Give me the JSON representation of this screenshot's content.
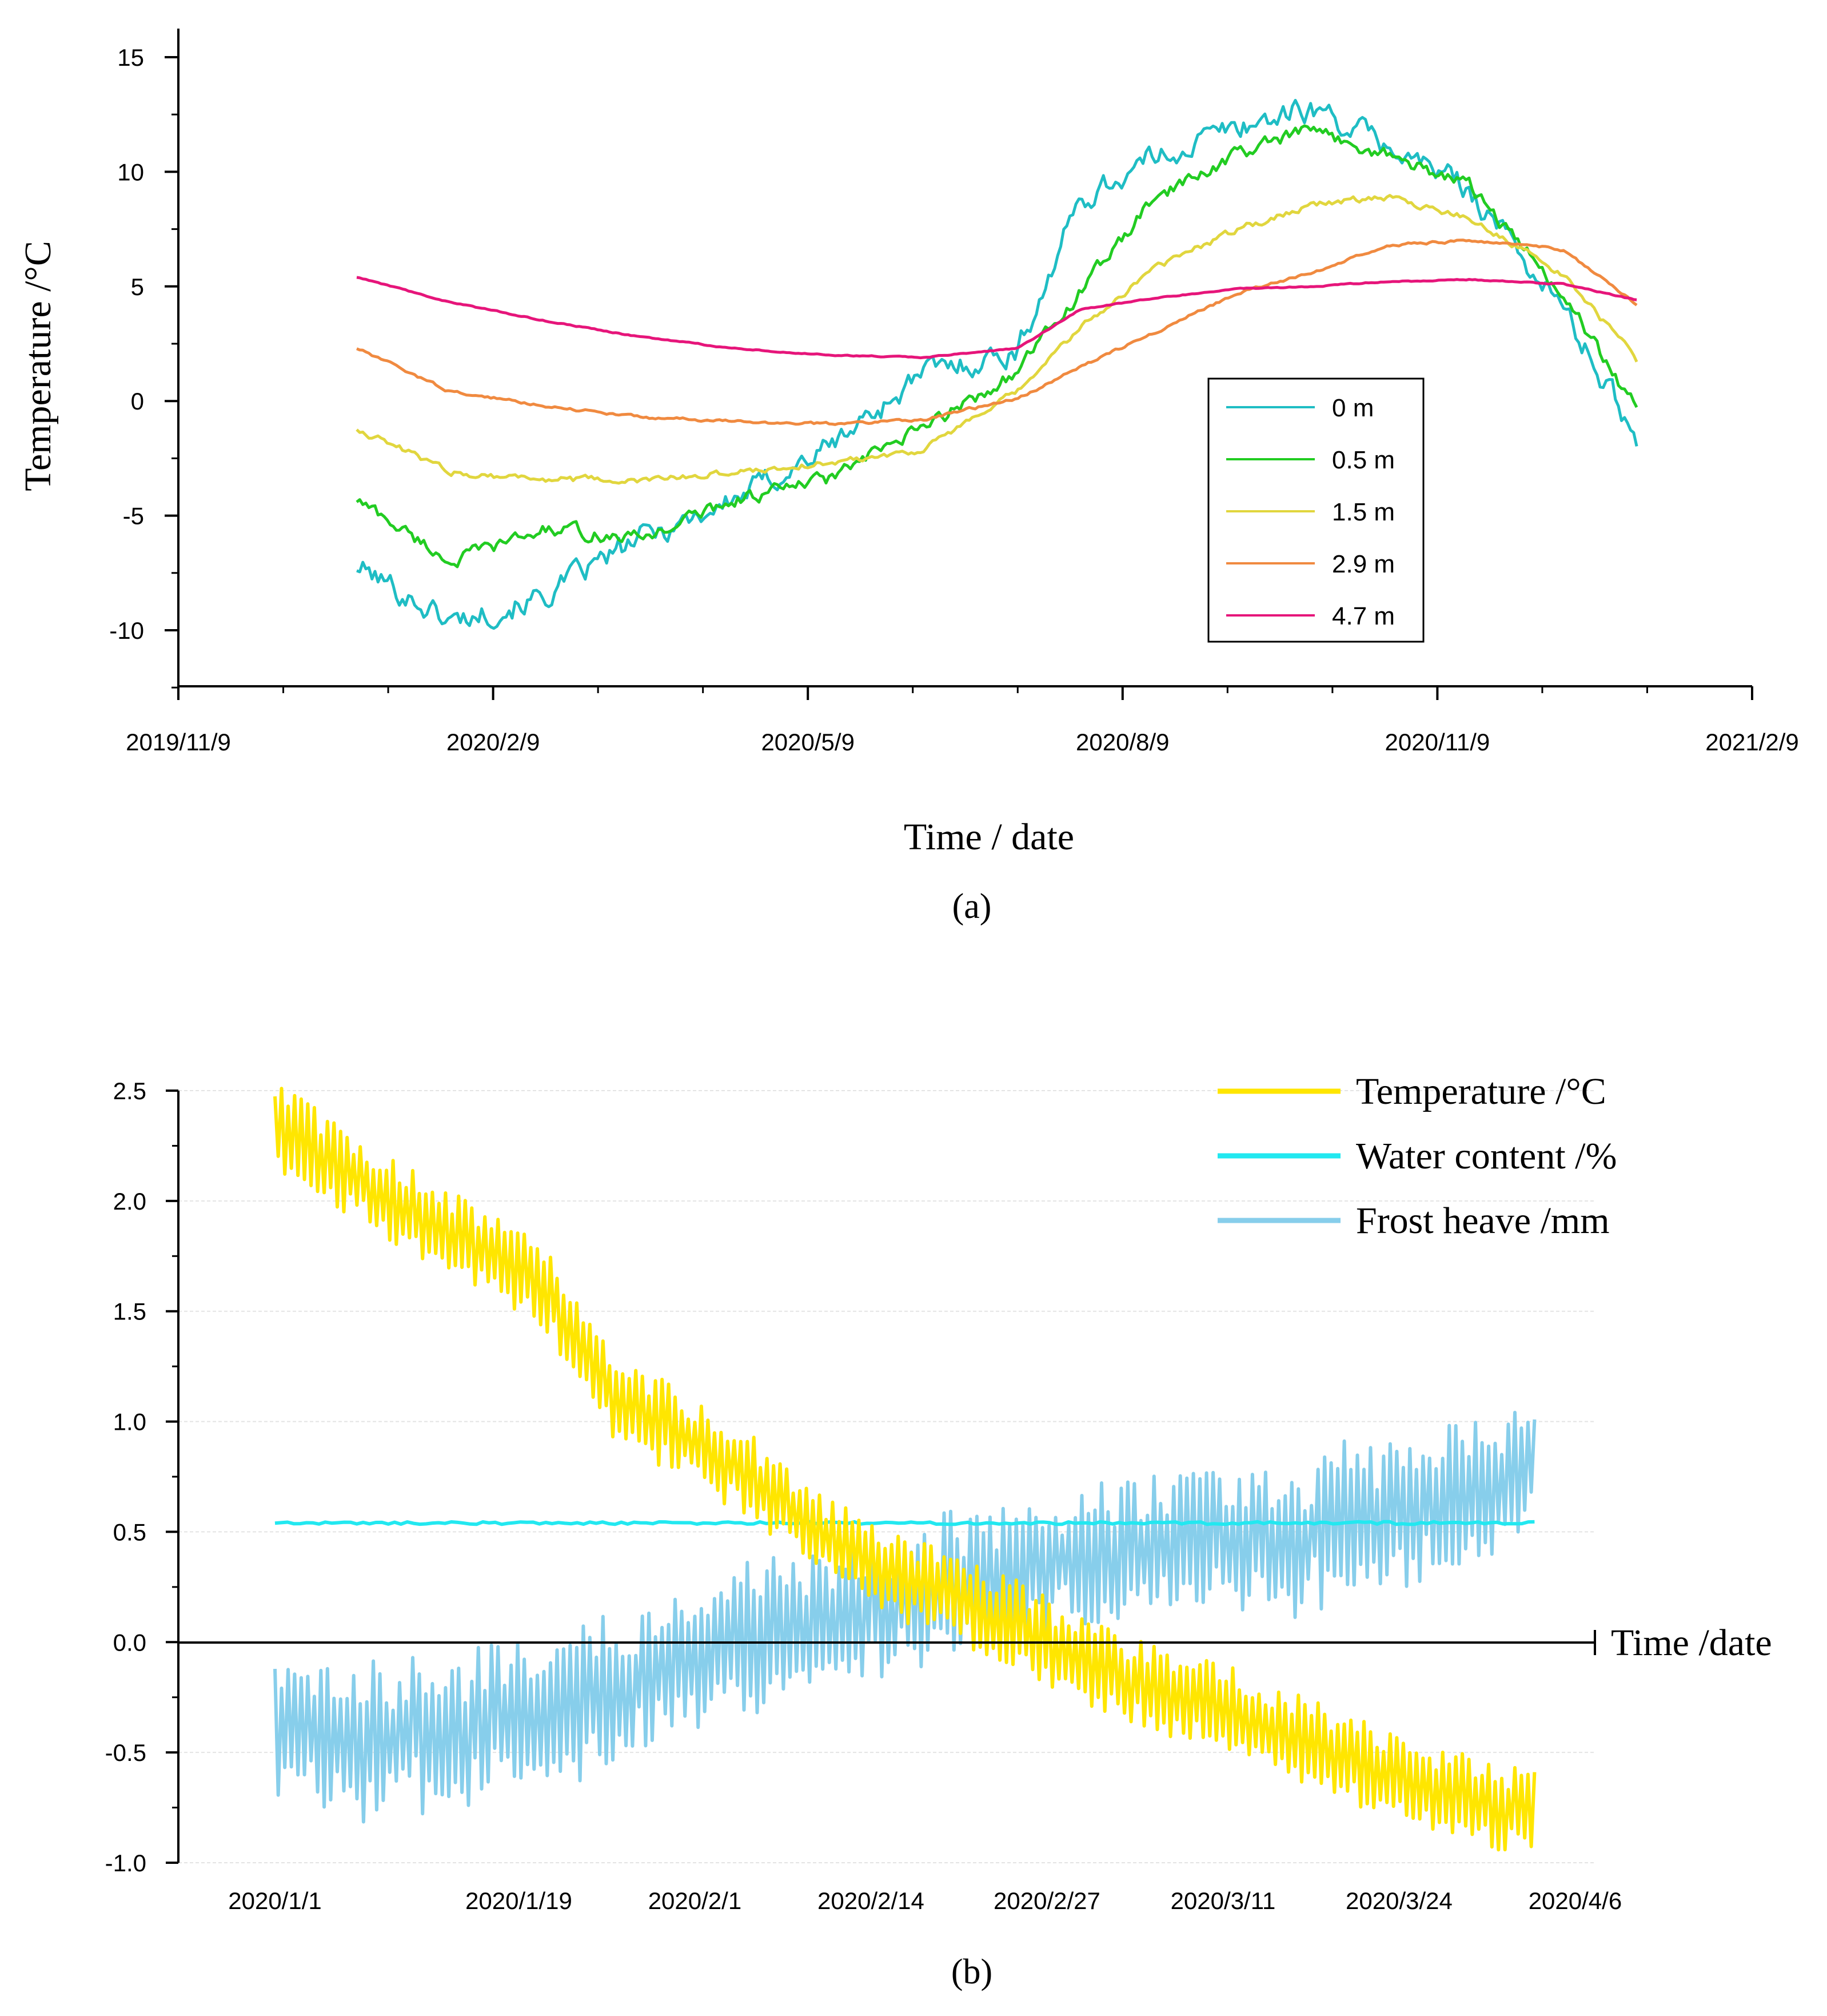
{
  "chart_data": [
    {
      "type": "line",
      "panel_label": "(a)",
      "xlabel": "Time  / date",
      "ylabel": "Temperature  /°C",
      "x_tick_labels": [
        "2019/11/9",
        "2020/2/9",
        "2020/5/9",
        "2020/8/9",
        "2020/11/9",
        "2021/2/9"
      ],
      "y_ticks": [
        15,
        10,
        5,
        0,
        -5,
        -10
      ],
      "y_tick_labels": [
        "15",
        "10",
        "5",
        "0",
        "-5",
        "-10"
      ],
      "ylim": [
        -12.5,
        16.5
      ],
      "xlim_months": [
        0,
        15
      ],
      "legend_position": "inside-right",
      "x_months": [
        1.7,
        2.6,
        3.5,
        4.4,
        5.3,
        6.2,
        7.1,
        8.0,
        8.6,
        9.3,
        10.1,
        10.8,
        11.5,
        12.3,
        13.2,
        13.9
      ],
      "series": [
        {
          "name": "0 m",
          "color": "#1fbdc4",
          "values": [
            -7.2,
            -9.6,
            -8.5,
            -6.0,
            -4.3,
            -2.0,
            1.2,
            2.2,
            8.8,
            10.6,
            12.0,
            12.8,
            11.2,
            9.3,
            4.0,
            -1.6
          ]
        },
        {
          "name": "0.5 m",
          "color": "#22cc22",
          "values": [
            -4.3,
            -7.0,
            -5.6,
            -6.0,
            -4.3,
            -3.4,
            -1.2,
            1.3,
            4.8,
            8.8,
            10.8,
            11.8,
            10.8,
            9.4,
            4.6,
            -0.4
          ]
        },
        {
          "name": "1.5 m",
          "color": "#e1d63e",
          "values": [
            -1.2,
            -3.1,
            -3.4,
            -3.5,
            -3.1,
            -2.7,
            -2.1,
            0.4,
            3.2,
            5.8,
            7.5,
            8.6,
            8.9,
            8.0,
            5.5,
            1.8
          ]
        },
        {
          "name": "2.9 m",
          "color": "#f08a40",
          "values": [
            2.3,
            0.4,
            -0.2,
            -0.7,
            -0.9,
            -1.0,
            -0.8,
            0.1,
            1.5,
            3.0,
            4.7,
            5.6,
            6.8,
            7.0,
            6.6,
            4.2
          ]
        },
        {
          "name": "4.7 m",
          "color": "#e6157a",
          "values": [
            5.4,
            4.3,
            3.5,
            2.8,
            2.3,
            2.0,
            1.9,
            2.3,
            4.0,
            4.5,
            4.9,
            5.0,
            5.2,
            5.3,
            5.1,
            4.4
          ]
        }
      ]
    },
    {
      "type": "line",
      "panel_label": "(b)",
      "xlabel": "Time /date",
      "x_tick_labels": [
        "2020/1/1",
        "2020/1/19",
        "2020/2/1",
        "2020/2/14",
        "2020/2/27",
        "2020/3/11",
        "2020/3/24",
        "2020/4/6"
      ],
      "y_ticks": [
        2.5,
        2.0,
        1.5,
        1.0,
        0.5,
        0.0,
        -0.5,
        -1.0
      ],
      "y_tick_labels": [
        "2.5",
        "2.0",
        "1.5",
        "1.0",
        "0.5",
        "0.0",
        "-0.5",
        "-1.0"
      ],
      "ylim": [
        -1.0,
        2.5
      ],
      "xlim_days": [
        0,
        96
      ],
      "grid": true,
      "legend_position": "top-right",
      "x_days": [
        0,
        5,
        10,
        15,
        20,
        25,
        30,
        35,
        40,
        45,
        50,
        55,
        60,
        65,
        70,
        75,
        80,
        85,
        90,
        96
      ],
      "series": [
        {
          "name": "Temperature  /°C",
          "color": "#ffe600",
          "values": [
            2.35,
            2.15,
            1.95,
            1.8,
            1.6,
            1.1,
            0.95,
            0.75,
            0.5,
            0.32,
            0.2,
            0.08,
            -0.1,
            -0.22,
            -0.3,
            -0.42,
            -0.55,
            -0.66,
            -0.74,
            -0.82
          ]
        },
        {
          "name": "Water content  /%",
          "color": "#22e8f0",
          "values": [
            0.54,
            0.54,
            0.54,
            0.54,
            0.54,
            0.54,
            0.54,
            0.54,
            0.54,
            0.54,
            0.54,
            0.54,
            0.54,
            0.54,
            0.54,
            0.54,
            0.54,
            0.54,
            0.54,
            0.54
          ]
        },
        {
          "name": "Frost heave  /mm",
          "color": "#87ceeb",
          "values": [
            -0.38,
            -0.45,
            -0.42,
            -0.38,
            -0.3,
            -0.22,
            -0.1,
            0.0,
            0.08,
            0.16,
            0.24,
            0.32,
            0.38,
            0.42,
            0.45,
            0.48,
            0.55,
            0.6,
            0.72,
            0.9
          ]
        }
      ]
    }
  ]
}
